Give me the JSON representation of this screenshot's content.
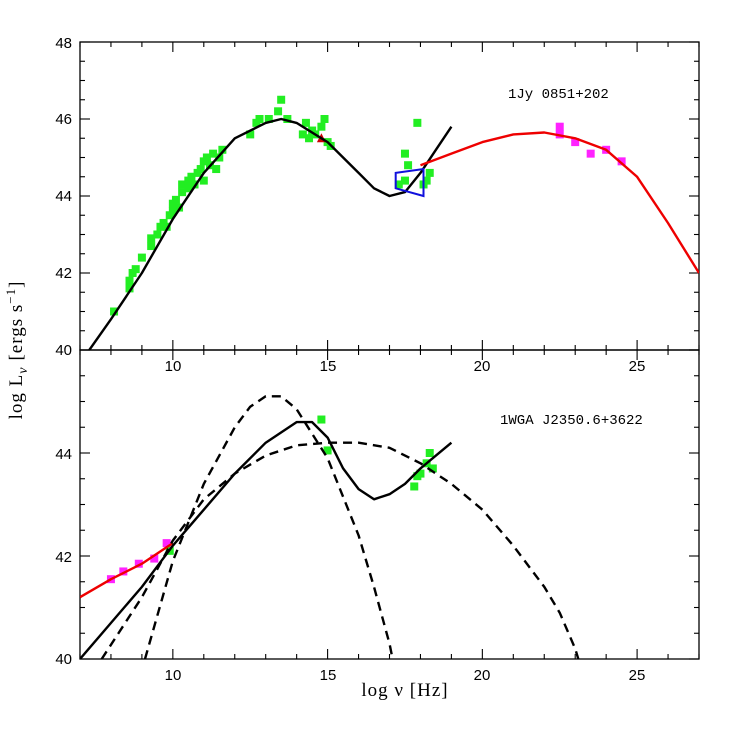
{
  "chart_data": [
    {
      "type": "scatter",
      "panel": "top",
      "source_label": "1Jy 0851+202",
      "xlim": [
        7,
        27
      ],
      "ylim": [
        40,
        48
      ],
      "x_ticks": [
        10,
        15,
        20,
        25
      ],
      "y_ticks": [
        40,
        42,
        44,
        46,
        48
      ],
      "series": [
        {
          "name": "green data",
          "color": "#22ee22",
          "marker": "square",
          "points": [
            [
              8.1,
              41.0
            ],
            [
              8.6,
              41.6
            ],
            [
              8.6,
              41.8
            ],
            [
              8.7,
              42.0
            ],
            [
              8.8,
              42.1
            ],
            [
              9.0,
              42.4
            ],
            [
              9.3,
              42.7
            ],
            [
              9.3,
              42.9
            ],
            [
              9.5,
              43.0
            ],
            [
              9.6,
              43.2
            ],
            [
              9.7,
              43.3
            ],
            [
              9.8,
              43.2
            ],
            [
              9.9,
              43.5
            ],
            [
              10.0,
              43.6
            ],
            [
              10.0,
              43.8
            ],
            [
              10.1,
              43.9
            ],
            [
              10.2,
              43.7
            ],
            [
              10.3,
              44.1
            ],
            [
              10.3,
              44.3
            ],
            [
              10.5,
              44.2
            ],
            [
              10.5,
              44.4
            ],
            [
              10.6,
              44.5
            ],
            [
              10.7,
              44.3
            ],
            [
              10.8,
              44.6
            ],
            [
              10.9,
              44.7
            ],
            [
              11.0,
              44.4
            ],
            [
              11.0,
              44.9
            ],
            [
              11.1,
              45.0
            ],
            [
              11.2,
              44.8
            ],
            [
              11.3,
              45.1
            ],
            [
              11.4,
              44.7
            ],
            [
              11.5,
              45.0
            ],
            [
              11.6,
              45.2
            ],
            [
              12.5,
              45.6
            ],
            [
              12.7,
              45.9
            ],
            [
              12.8,
              46.0
            ],
            [
              13.1,
              46.0
            ],
            [
              13.4,
              46.2
            ],
            [
              13.5,
              46.5
            ],
            [
              13.7,
              46.0
            ],
            [
              14.2,
              45.6
            ],
            [
              14.3,
              45.9
            ],
            [
              14.4,
              45.5
            ],
            [
              14.5,
              45.7
            ],
            [
              14.6,
              45.6
            ],
            [
              14.8,
              45.8
            ],
            [
              14.9,
              46.0
            ],
            [
              15.0,
              45.4
            ],
            [
              15.1,
              45.3
            ],
            [
              17.3,
              44.3
            ],
            [
              17.5,
              44.4
            ],
            [
              17.6,
              44.8
            ],
            [
              17.5,
              45.1
            ],
            [
              17.9,
              45.9
            ],
            [
              18.2,
              44.4
            ],
            [
              18.3,
              44.6
            ],
            [
              18.1,
              44.3
            ]
          ]
        },
        {
          "name": "magenta data",
          "color": "#ff22ff",
          "marker": "square",
          "points": [
            [
              22.5,
              45.8
            ],
            [
              22.5,
              45.6
            ],
            [
              23.0,
              45.4
            ],
            [
              23.5,
              45.1
            ],
            [
              24.0,
              45.2
            ],
            [
              24.5,
              44.9
            ]
          ]
        },
        {
          "name": "red marker",
          "color": "#cc0000",
          "marker": "triangle",
          "points": [
            [
              14.8,
              45.5
            ]
          ]
        },
        {
          "name": "model",
          "color": "#000000",
          "style": "solid",
          "points": [
            [
              7.3,
              40.0
            ],
            [
              8.0,
              40.8
            ],
            [
              9.0,
              42.0
            ],
            [
              10.0,
              43.4
            ],
            [
              11.0,
              44.6
            ],
            [
              12.0,
              45.5
            ],
            [
              13.0,
              45.9
            ],
            [
              13.5,
              46.0
            ],
            [
              14.0,
              45.9
            ],
            [
              15.0,
              45.4
            ],
            [
              16.0,
              44.6
            ],
            [
              16.5,
              44.2
            ],
            [
              17.0,
              44.0
            ],
            [
              17.5,
              44.1
            ],
            [
              18.0,
              44.6
            ],
            [
              18.5,
              45.2
            ],
            [
              19.0,
              45.8
            ]
          ]
        },
        {
          "name": "model high-energy",
          "color": "#ee0000",
          "style": "solid",
          "points": [
            [
              18.0,
              44.8
            ],
            [
              19.0,
              45.1
            ],
            [
              20.0,
              45.4
            ],
            [
              21.0,
              45.6
            ],
            [
              22.0,
              45.65
            ],
            [
              23.0,
              45.5
            ],
            [
              24.0,
              45.2
            ],
            [
              25.0,
              44.5
            ],
            [
              26.0,
              43.3
            ],
            [
              27.0,
              42.0
            ]
          ]
        },
        {
          "name": "X-ray bowtie",
          "color": "#1010dd",
          "style": "outline",
          "points": [
            [
              17.2,
              44.6
            ],
            [
              17.2,
              44.2
            ],
            [
              18.1,
              44.0
            ],
            [
              18.1,
              44.7
            ]
          ]
        }
      ]
    },
    {
      "type": "scatter",
      "panel": "bottom",
      "source_label": "1WGA J2350.6+3622",
      "xlim": [
        7,
        27
      ],
      "ylim": [
        40,
        46
      ],
      "x_ticks": [
        10,
        15,
        20,
        25
      ],
      "y_ticks": [
        40,
        42,
        44
      ],
      "xlabel": "log ν [Hz]",
      "series": [
        {
          "name": "magenta data",
          "color": "#ff22ff",
          "marker": "square",
          "points": [
            [
              8.0,
              41.55
            ],
            [
              8.4,
              41.7
            ],
            [
              8.9,
              41.85
            ],
            [
              9.4,
              41.95
            ],
            [
              9.8,
              42.25
            ]
          ]
        },
        {
          "name": "green data",
          "color": "#22ee22",
          "marker": "square",
          "points": [
            [
              9.9,
              42.1
            ],
            [
              14.8,
              44.65
            ],
            [
              15.0,
              44.05
            ],
            [
              17.8,
              43.35
            ],
            [
              17.9,
              43.55
            ],
            [
              18.0,
              43.6
            ],
            [
              18.2,
              43.8
            ],
            [
              18.3,
              44.0
            ],
            [
              18.4,
              43.7
            ]
          ]
        },
        {
          "name": "red model",
          "color": "#ee0000",
          "style": "solid",
          "points": [
            [
              7.0,
              41.2
            ],
            [
              8.0,
              41.55
            ],
            [
              9.0,
              41.85
            ],
            [
              10.0,
              42.25
            ]
          ]
        },
        {
          "name": "model",
          "color": "#000000",
          "style": "solid",
          "points": [
            [
              7.0,
              40.0
            ],
            [
              8.0,
              40.7
            ],
            [
              9.0,
              41.4
            ],
            [
              10.0,
              42.2
            ],
            [
              11.0,
              42.9
            ],
            [
              12.0,
              43.6
            ],
            [
              13.0,
              44.2
            ],
            [
              14.0,
              44.6
            ],
            [
              14.5,
              44.6
            ],
            [
              15.0,
              44.3
            ],
            [
              15.5,
              43.7
            ],
            [
              16.0,
              43.3
            ],
            [
              16.5,
              43.1
            ],
            [
              17.0,
              43.2
            ],
            [
              17.5,
              43.4
            ],
            [
              18.0,
              43.7
            ],
            [
              18.5,
              43.95
            ],
            [
              19.0,
              44.2
            ]
          ]
        },
        {
          "name": "synchrotron component",
          "color": "#000000",
          "style": "dashed",
          "points": [
            [
              9.1,
              40.0
            ],
            [
              10.0,
              41.9
            ],
            [
              11.0,
              43.4
            ],
            [
              12.0,
              44.5
            ],
            [
              12.5,
              44.9
            ],
            [
              13.0,
              45.1
            ],
            [
              13.5,
              45.1
            ],
            [
              14.0,
              44.85
            ],
            [
              15.0,
              43.9
            ],
            [
              16.0,
              42.4
            ],
            [
              16.5,
              41.4
            ],
            [
              17.0,
              40.3
            ],
            [
              17.1,
              40.0
            ]
          ]
        },
        {
          "name": "inverse-Compton component",
          "color": "#000000",
          "style": "dashed",
          "points": [
            [
              7.7,
              40.0
            ],
            [
              9.0,
              41.2
            ],
            [
              10.0,
              42.3
            ],
            [
              11.0,
              43.1
            ],
            [
              12.0,
              43.6
            ],
            [
              13.0,
              43.95
            ],
            [
              14.0,
              44.15
            ],
            [
              15.0,
              44.2
            ],
            [
              16.0,
              44.2
            ],
            [
              17.0,
              44.1
            ],
            [
              18.0,
              43.8
            ],
            [
              19.0,
              43.4
            ],
            [
              20.0,
              42.9
            ],
            [
              21.0,
              42.2
            ],
            [
              22.0,
              41.4
            ],
            [
              22.5,
              40.9
            ],
            [
              23.0,
              40.2
            ],
            [
              23.1,
              40.0
            ]
          ]
        }
      ]
    }
  ],
  "y_axis_title": "log L",
  "y_axis_subscript": "ν",
  "y_axis_units": "[ergs s",
  "y_axis_units_exp": "−1",
  "y_axis_units_close": "]",
  "top_y_tick_labels": [
    "40",
    "42",
    "44",
    "46",
    "48"
  ],
  "top_x_tick_labels": [
    "10",
    "15",
    "20",
    "25"
  ],
  "bottom_y_tick_labels": [
    "40",
    "42",
    "44"
  ],
  "bottom_x_tick_labels": [
    "10",
    "15",
    "20",
    "25"
  ],
  "top_label": "1Jy 0851+202",
  "bottom_label": "1WGA J2350.6+3622",
  "x_axis_title": "log  ν [Hz]"
}
